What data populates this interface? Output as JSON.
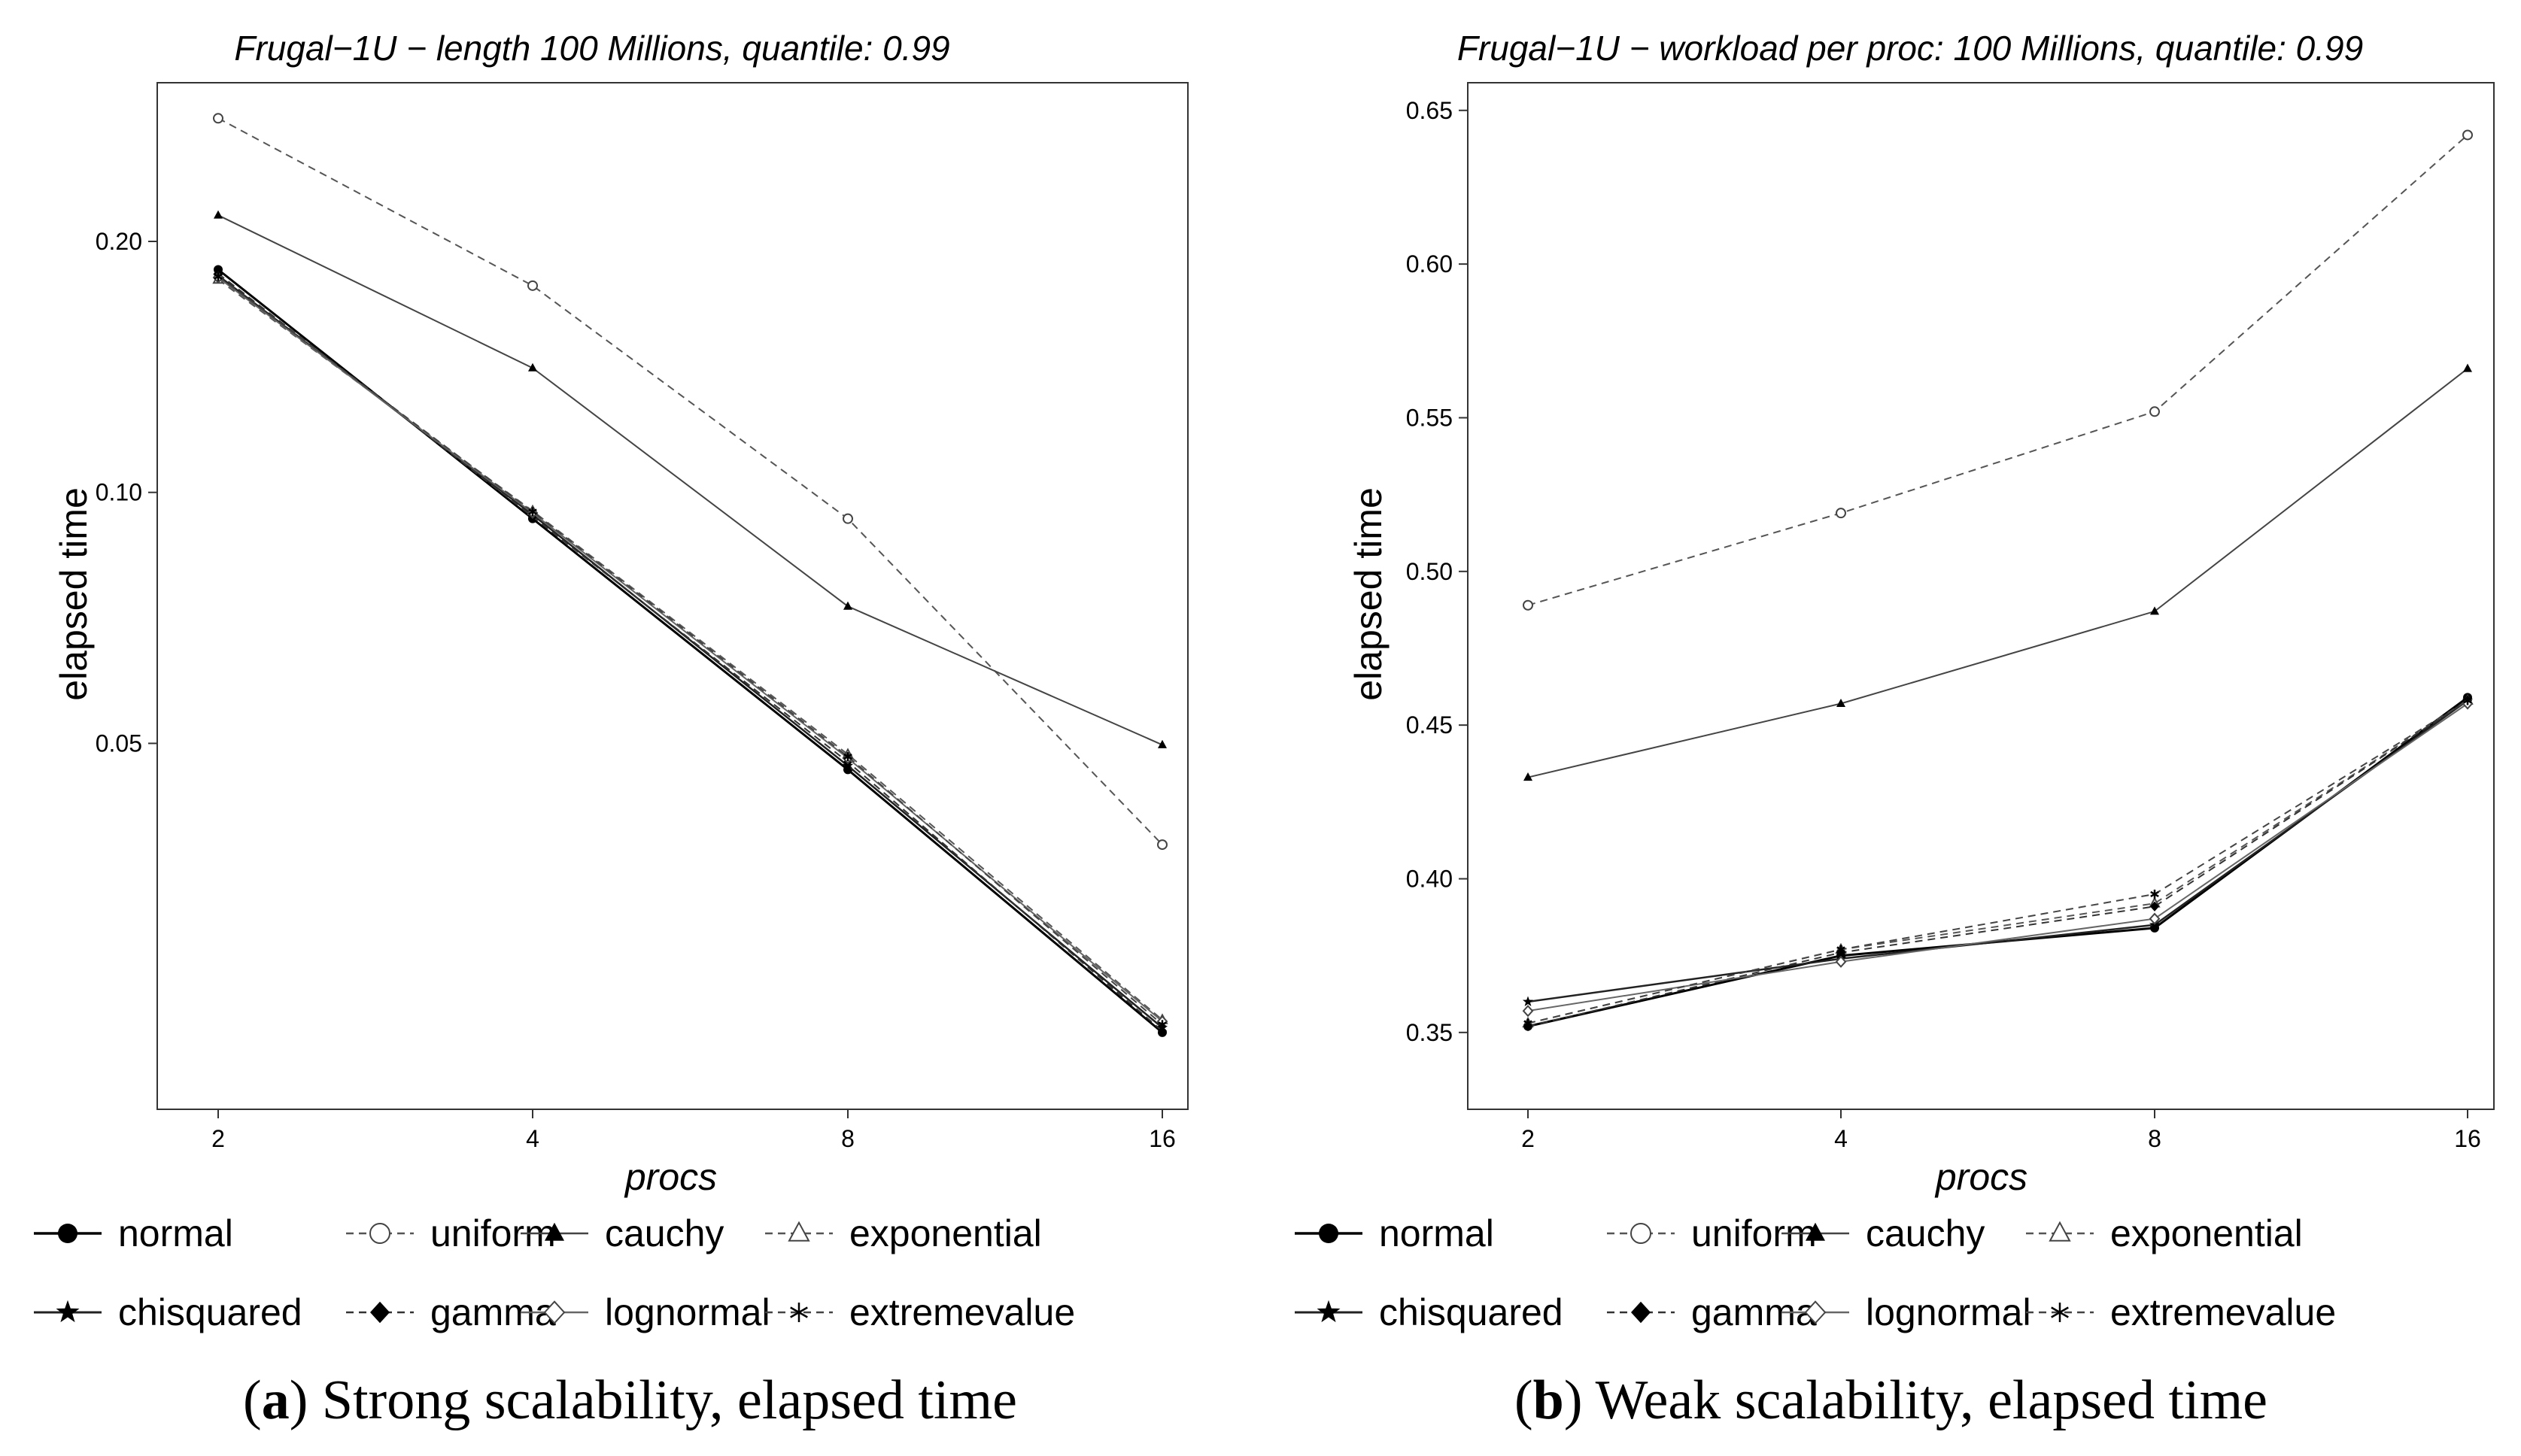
{
  "chart_data": [
    {
      "type": "line",
      "title": "Frugal−1U − length 100 Millions, quantile: 0.99",
      "xlabel": "procs",
      "ylabel": "elapsed time",
      "x_scale": "log",
      "y_scale": "log",
      "categories": [
        "2",
        "4",
        "8",
        "16"
      ],
      "x": [
        2,
        4,
        8,
        16
      ],
      "ylim": [
        0.0182,
        0.31
      ],
      "yticks": [
        0.05,
        0.1,
        0.2
      ],
      "ytick_labels": [
        "0.05",
        "0.10",
        "0.20"
      ],
      "series": [
        {
          "name": "normal",
          "style": "solid",
          "marker": "filled-circle",
          "values": [
            0.185,
            0.093,
            0.0465,
            0.0225
          ]
        },
        {
          "name": "uniform",
          "style": "dashed",
          "marker": "open-circle",
          "values": [
            0.281,
            0.177,
            0.093,
            0.0378
          ]
        },
        {
          "name": "cauchy",
          "style": "solid",
          "marker": "filled-triangle",
          "values": [
            0.215,
            0.141,
            0.073,
            0.0498
          ]
        },
        {
          "name": "exponential",
          "style": "dashed",
          "marker": "open-triangle",
          "values": [
            0.18,
            0.095,
            0.0485,
            0.0233
          ]
        },
        {
          "name": "chisquared",
          "style": "solid",
          "marker": "filled-star",
          "values": [
            0.182,
            0.094,
            0.047,
            0.0228
          ]
        },
        {
          "name": "gamma",
          "style": "dashed",
          "marker": "filled-diamond",
          "values": [
            0.183,
            0.0935,
            0.0475,
            0.0226
          ]
        },
        {
          "name": "lognormal",
          "style": "solid",
          "marker": "open-diamond",
          "values": [
            0.181,
            0.0945,
            0.048,
            0.0232
          ]
        },
        {
          "name": "extremevalue",
          "style": "dashed",
          "marker": "asterisk",
          "values": [
            0.1815,
            0.0948,
            0.0482,
            0.023
          ]
        }
      ],
      "caption_letter": "a",
      "caption_text": " Strong scalability, elapsed time"
    },
    {
      "type": "line",
      "title": "Frugal−1U − workload per proc: 100 Millions, quantile: 0.99",
      "xlabel": "procs",
      "ylabel": "elapsed time",
      "x_scale": "log",
      "y_scale": "linear",
      "categories": [
        "2",
        "4",
        "8",
        "16"
      ],
      "x": [
        2,
        4,
        8,
        16
      ],
      "ylim": [
        0.325,
        0.659
      ],
      "yticks": [
        0.35,
        0.4,
        0.45,
        0.5,
        0.55,
        0.6,
        0.65
      ],
      "ytick_labels": [
        "0.35",
        "0.40",
        "0.45",
        "0.50",
        "0.55",
        "0.60",
        "0.65"
      ],
      "series": [
        {
          "name": "normal",
          "style": "solid",
          "marker": "filled-circle",
          "values": [
            0.352,
            0.375,
            0.384,
            0.459
          ]
        },
        {
          "name": "uniform",
          "style": "dashed",
          "marker": "open-circle",
          "values": [
            0.489,
            0.519,
            0.552,
            0.642
          ]
        },
        {
          "name": "cauchy",
          "style": "solid",
          "marker": "filled-triangle",
          "values": [
            0.433,
            0.457,
            0.487,
            0.566
          ]
        },
        {
          "name": "exponential",
          "style": "dashed",
          "marker": "open-triangle",
          "values": [
            0.353,
            0.377,
            0.392,
            0.458
          ]
        },
        {
          "name": "chisquared",
          "style": "solid",
          "marker": "filled-star",
          "values": [
            0.36,
            0.374,
            0.385,
            0.458
          ]
        },
        {
          "name": "gamma",
          "style": "dashed",
          "marker": "filled-diamond",
          "values": [
            0.352,
            0.376,
            0.391,
            0.458
          ]
        },
        {
          "name": "lognormal",
          "style": "solid",
          "marker": "open-diamond",
          "values": [
            0.357,
            0.373,
            0.387,
            0.457
          ]
        },
        {
          "name": "extremevalue",
          "style": "dashed",
          "marker": "asterisk",
          "values": [
            0.353,
            0.377,
            0.395,
            0.458
          ]
        }
      ],
      "caption_letter": "b",
      "caption_text": " Weak scalability, elapsed time"
    }
  ],
  "legend": [
    "normal",
    "uniform",
    "cauchy",
    "exponential",
    "chisquared",
    "gamma",
    "lognormal",
    "extremevalue"
  ]
}
